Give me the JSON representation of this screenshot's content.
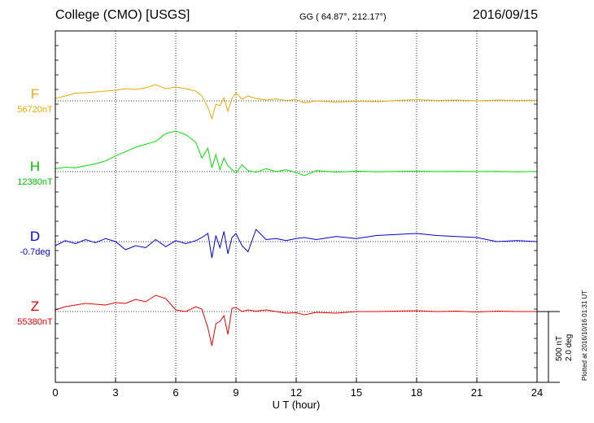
{
  "header": {
    "station": "College (CMO)  [USGS]",
    "coords": "GG ( 64.87°, 212.17°)",
    "date": "2016/09/15"
  },
  "footer": {
    "plotted": "Plotted at 2016/10/16 01:31 UT"
  },
  "scale": {
    "nt": "500 nT",
    "deg": "2.0 deg"
  },
  "chart_data": {
    "type": "line",
    "xlabel": "U T (hour)",
    "xlim": [
      0,
      24
    ],
    "xticks": [
      0,
      3,
      6,
      9,
      12,
      15,
      18,
      21,
      24
    ],
    "grid": true,
    "series": [
      {
        "name": "F",
        "baseline": "56720nT",
        "color": "#f0a800",
        "x": [
          0,
          0.5,
          1,
          1.5,
          2,
          2.5,
          3,
          3.5,
          4,
          4.5,
          5,
          5.5,
          6,
          6.5,
          7,
          7.3,
          7.6,
          7.8,
          8.0,
          8.2,
          8.4,
          8.6,
          8.8,
          9.0,
          9.3,
          9.6,
          10,
          10.5,
          11,
          11.5,
          12,
          12.4,
          13,
          14,
          15,
          16,
          17,
          18,
          19,
          20,
          21,
          22,
          23,
          24
        ],
        "values": [
          30,
          60,
          95,
          100,
          110,
          120,
          130,
          150,
          140,
          160,
          200,
          150,
          170,
          150,
          120,
          60,
          -80,
          -220,
          -40,
          -60,
          40,
          -130,
          30,
          100,
          20,
          60,
          30,
          10,
          25,
          5,
          15,
          -25,
          0,
          -15,
          -5,
          -10,
          5,
          15,
          5,
          10,
          0,
          10,
          5,
          8
        ]
      },
      {
        "name": "H",
        "baseline": "12380nT",
        "color": "#00e000",
        "x": [
          0,
          0.5,
          1,
          1.5,
          2,
          2.5,
          3,
          3.5,
          4,
          4.5,
          5,
          5.5,
          6,
          6.5,
          7,
          7.3,
          7.6,
          7.8,
          8.0,
          8.2,
          8.4,
          8.6,
          8.8,
          9.0,
          9.3,
          9.6,
          10,
          10.5,
          11,
          11.5,
          12,
          12.4,
          13,
          14,
          15,
          16,
          17,
          18,
          19,
          20,
          21,
          22,
          23,
          24
        ],
        "values": [
          60,
          90,
          80,
          120,
          160,
          220,
          320,
          410,
          500,
          560,
          620,
          780,
          830,
          760,
          600,
          280,
          480,
          80,
          350,
          40,
          280,
          120,
          40,
          -30,
          140,
          20,
          -10,
          60,
          0,
          40,
          -20,
          -80,
          20,
          -10,
          10,
          -5,
          5,
          10,
          0,
          5,
          0,
          5,
          -5,
          5
        ]
      },
      {
        "name": "D",
        "baseline": "-0.7deg",
        "color": "#0000dd",
        "x": [
          0,
          0.5,
          1,
          1.5,
          2,
          2.5,
          3,
          3.5,
          4,
          4.5,
          5,
          5.5,
          6,
          6.5,
          7,
          7.3,
          7.6,
          7.8,
          8.0,
          8.2,
          8.4,
          8.6,
          8.8,
          9.0,
          9.3,
          9.6,
          10,
          10.5,
          11,
          11.5,
          12,
          12.4,
          13,
          14,
          15,
          16,
          17,
          18,
          19,
          20,
          21,
          22,
          23,
          24
        ],
        "values": [
          -0.2,
          0.05,
          -0.1,
          0.1,
          -0.05,
          0.15,
          0.0,
          -0.4,
          -0.2,
          -0.3,
          0.1,
          -0.25,
          0.05,
          -0.1,
          0.05,
          0.2,
          0.4,
          -0.8,
          0.3,
          -0.3,
          0.5,
          -0.6,
          0.2,
          0.4,
          -0.2,
          -0.5,
          0.6,
          0.1,
          0.15,
          0.05,
          0.15,
          0.2,
          0.1,
          0.25,
          0.15,
          0.3,
          0.35,
          0.4,
          0.3,
          0.25,
          0.2,
          0.0,
          0.05,
          0.0
        ]
      },
      {
        "name": "Z",
        "baseline": "55380nT",
        "color": "#ee0000",
        "x": [
          0,
          0.5,
          1,
          1.5,
          2,
          2.5,
          3,
          3.5,
          4,
          4.5,
          5,
          5.5,
          6,
          6.5,
          7,
          7.3,
          7.6,
          7.8,
          8.0,
          8.2,
          8.4,
          8.6,
          8.8,
          9.0,
          9.3,
          9.6,
          10,
          10.5,
          11,
          11.5,
          12,
          12.4,
          13,
          14,
          15,
          16,
          17,
          18,
          19,
          20,
          21,
          22,
          23,
          24
        ],
        "values": [
          20,
          60,
          80,
          100,
          90,
          80,
          110,
          100,
          150,
          120,
          200,
          160,
          20,
          0,
          60,
          30,
          -200,
          -420,
          -150,
          -120,
          -50,
          -280,
          40,
          50,
          0,
          20,
          5,
          20,
          0,
          -20,
          -15,
          -40,
          -10,
          -20,
          0,
          0,
          5,
          10,
          0,
          5,
          -5,
          5,
          0,
          0
        ]
      }
    ]
  }
}
